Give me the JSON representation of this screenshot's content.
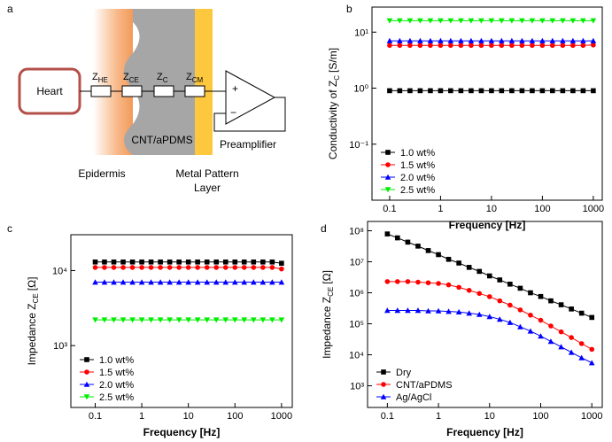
{
  "diagram": {
    "panel": "a",
    "source": "Heart",
    "impedances": [
      {
        "main": "Z",
        "sub": "HE"
      },
      {
        "main": "Z",
        "sub": "CE"
      },
      {
        "main": "Z",
        "sub": "C"
      },
      {
        "main": "Z",
        "sub": "CM"
      }
    ],
    "layer": "CNT/aPDMS",
    "amplifier": "Preamplifier",
    "plus": "+",
    "minus": "−",
    "skin": "Epidermis",
    "metal": [
      "Metal Pattern",
      "Layer"
    ]
  },
  "chart_data": [
    {
      "panel": "b",
      "type": "line",
      "xlabel": "Frequency [Hz]",
      "ylabel": {
        "text": "Conductivity of Z",
        "sub": "C",
        "unit": "[S/m]"
      },
      "log_x": true,
      "log_y": true,
      "xlim": [
        0.045,
        1500
      ],
      "ylim": [
        0.01,
        28
      ],
      "xticks": [
        0.1,
        1,
        10,
        100,
        1000
      ],
      "yticks": [
        {
          "value": 0.1,
          "label": "10⁻¹"
        },
        {
          "value": 1,
          "label": "10⁰"
        },
        {
          "value": 10,
          "label": "10¹"
        }
      ],
      "legend": "lower left",
      "x": [
        0.1,
        0.158,
        0.251,
        0.398,
        0.631,
        1,
        1.58,
        2.51,
        3.98,
        6.31,
        10,
        15.8,
        25.1,
        39.8,
        63.1,
        100,
        158,
        251,
        398,
        631,
        1000
      ],
      "series": [
        {
          "name": "1.0 wt%",
          "color": "#000000",
          "marker": "square",
          "values": [
            0.9,
            0.9,
            0.9,
            0.9,
            0.9,
            0.9,
            0.9,
            0.9,
            0.9,
            0.9,
            0.9,
            0.9,
            0.9,
            0.9,
            0.9,
            0.9,
            0.9,
            0.9,
            0.9,
            0.9,
            0.9
          ]
        },
        {
          "name": "1.5 wt%",
          "color": "#ff0000",
          "marker": "circle",
          "values": [
            5.8,
            5.8,
            5.8,
            5.8,
            5.8,
            5.8,
            5.8,
            5.8,
            5.8,
            5.8,
            5.8,
            5.8,
            5.8,
            5.8,
            5.8,
            5.8,
            5.8,
            5.8,
            5.8,
            5.8,
            5.9
          ]
        },
        {
          "name": "2.0 wt%",
          "color": "#0000ff",
          "marker": "triangle-up",
          "values": [
            7,
            7,
            7,
            7,
            7,
            7,
            7,
            7,
            7,
            7,
            7,
            7,
            7,
            7,
            7,
            7,
            7,
            7,
            7,
            7,
            7
          ]
        },
        {
          "name": "2.5 wt%",
          "color": "#00ee00",
          "marker": "triangle-down",
          "values": [
            16,
            16,
            16,
            16,
            16,
            16,
            16,
            16,
            16,
            16,
            16,
            16,
            16,
            16,
            16,
            16,
            16,
            16,
            16,
            16,
            16
          ]
        }
      ]
    },
    {
      "panel": "c",
      "type": "line",
      "xlabel": "Frequency [Hz]",
      "ylabel": {
        "text": "Impedance Z",
        "sub": "CE",
        "unit": "[Ω]"
      },
      "log_x": true,
      "log_y": true,
      "xlim": [
        0.03,
        1700
      ],
      "ylim": [
        150,
        30000
      ],
      "xticks": [
        0.1,
        1,
        10,
        100,
        1000
      ],
      "yticks": [
        {
          "value": 1000,
          "label": "10³"
        },
        {
          "value": 10000,
          "label": "10⁴"
        }
      ],
      "legend": "lower left",
      "x": [
        0.1,
        0.158,
        0.251,
        0.398,
        0.631,
        1,
        1.58,
        2.51,
        3.98,
        6.31,
        10,
        15.8,
        25.1,
        39.8,
        63.1,
        100,
        158,
        251,
        398,
        631,
        1000
      ],
      "series": [
        {
          "name": "1.0 wt%",
          "color": "#000000",
          "marker": "square",
          "values": [
            13000,
            13000,
            13000,
            13000,
            13000,
            13000,
            13000,
            13000,
            13000,
            13000,
            13000,
            13000,
            13000,
            13000,
            13000,
            13000,
            13000,
            13000,
            13000,
            13000,
            12500
          ]
        },
        {
          "name": "1.5 wt%",
          "color": "#ff0000",
          "marker": "circle",
          "values": [
            11000,
            11000,
            11000,
            11000,
            11000,
            11000,
            11000,
            11000,
            11000,
            11000,
            11000,
            11000,
            11000,
            11000,
            11000,
            11000,
            11000,
            11000,
            11000,
            11000,
            10500
          ]
        },
        {
          "name": "2.0 wt%",
          "color": "#0000ff",
          "marker": "triangle-up",
          "values": [
            7000,
            7000,
            7000,
            7000,
            7000,
            7000,
            7000,
            7000,
            7000,
            7000,
            7000,
            7000,
            7000,
            7000,
            7000,
            7000,
            7000,
            7000,
            7000,
            7000,
            7000
          ]
        },
        {
          "name": "2.5 wt%",
          "color": "#00ee00",
          "marker": "triangle-down",
          "values": [
            2200,
            2200,
            2200,
            2200,
            2200,
            2200,
            2200,
            2200,
            2200,
            2200,
            2200,
            2200,
            2200,
            2200,
            2200,
            2200,
            2200,
            2200,
            2200,
            2200,
            2200
          ]
        }
      ]
    },
    {
      "panel": "d",
      "type": "line",
      "xlabel": "Frequency [Hz]",
      "ylabel": {
        "text": "Impedance Z",
        "sub": "CE",
        "unit": "[Ω]"
      },
      "log_x": true,
      "log_y": true,
      "xlim": [
        0.041,
        1600
      ],
      "ylim": [
        200,
        200000000
      ],
      "xticks": [
        0.1,
        1,
        10,
        100,
        1000
      ],
      "yticks": [
        {
          "value": 1000,
          "label": "10³"
        },
        {
          "value": 10000,
          "label": "10⁴"
        },
        {
          "value": 100000,
          "label": "10⁵"
        },
        {
          "value": 1000000,
          "label": "10⁶"
        },
        {
          "value": 10000000,
          "label": "10⁷"
        },
        {
          "value": 100000000,
          "label": "10⁸"
        }
      ],
      "legend": "lower left",
      "x": [
        0.1,
        0.158,
        0.251,
        0.398,
        0.631,
        1,
        1.58,
        2.51,
        3.98,
        6.31,
        10,
        15.8,
        25.1,
        39.8,
        63.1,
        100,
        158,
        251,
        398,
        631,
        1000
      ],
      "series": [
        {
          "name": "Dry",
          "color": "#000000",
          "marker": "square",
          "values": [
            79000000,
            59000000,
            43000000,
            32000000,
            23000000,
            17000000,
            12000000,
            9100000,
            6600000,
            4900000,
            3500000,
            2600000,
            1900000,
            1400000,
            1000000,
            760000,
            550000,
            410000,
            300000,
            220000,
            160000
          ]
        },
        {
          "name": "CNT/aPDMS",
          "color": "#ff0000",
          "marker": "circle",
          "values": [
            2300000,
            2300000,
            2300000,
            2200000,
            2100000,
            2000000,
            1800000,
            1500000,
            1200000,
            950000,
            750000,
            550000,
            400000,
            280000,
            190000,
            130000,
            85000,
            55000,
            36000,
            23000,
            15000
          ]
        },
        {
          "name": "Ag/AgCl",
          "color": "#0000ff",
          "marker": "triangle-up",
          "values": [
            270000,
            270000,
            270000,
            270000,
            260000,
            260000,
            250000,
            240000,
            220000,
            200000,
            170000,
            140000,
            110000,
            80000,
            58000,
            40000,
            27000,
            18000,
            12000,
            8000,
            5500
          ]
        }
      ]
    }
  ]
}
